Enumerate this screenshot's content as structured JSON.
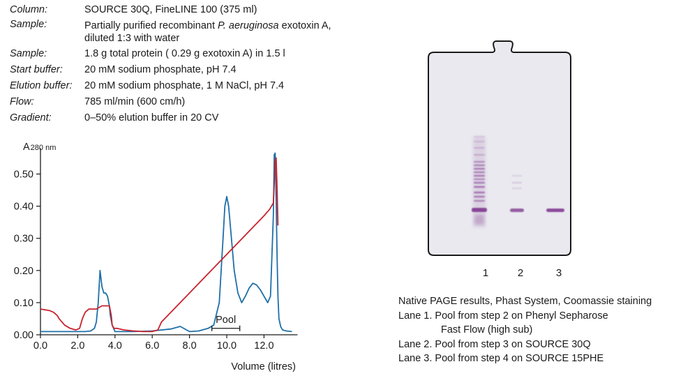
{
  "params": [
    {
      "label": "Column:",
      "lines": [
        "SOURCE 30Q, FineLINE 100 (375 ml)"
      ]
    },
    {
      "label": "Sample:",
      "lines": [
        "Partially purified recombinant P. aeruginosa exotoxin A,",
        "diluted 1:3 with water"
      ]
    },
    {
      "label": "Sample:",
      "lines": [
        "1.8 g total protein ( 0.29 g exotoxin A) in 1.5 l"
      ]
    },
    {
      "label": "Start buffer:",
      "lines": [
        "20 mM sodium phosphate, pH 7.4"
      ]
    },
    {
      "label": "Elution buffer:",
      "lines": [
        "20 mM sodium phosphate, 1 M NaCl, pH 7.4"
      ]
    },
    {
      "label": "Flow:",
      "lines": [
        "785 ml/min (600 cm/h)"
      ]
    },
    {
      "label": "Gradient:",
      "lines": [
        "0–50% elution buffer in 20 CV"
      ]
    }
  ],
  "chart_data": {
    "type": "line",
    "ylabel": "A",
    "ylabel_sub": "280 nm",
    "xlabel": "Volume (litres)",
    "xlim": [
      0,
      13.8
    ],
    "ylim": [
      0,
      0.58
    ],
    "xticks": [
      "0.0",
      "2.0",
      "4.0",
      "6.0",
      "8.0",
      "10.0",
      "12.0"
    ],
    "yticks": [
      "0.00",
      "0.10",
      "0.20",
      "0.30",
      "0.40",
      "0.50"
    ],
    "annotation": {
      "text": "Pool",
      "x_start": 9.2,
      "x_end": 10.7,
      "y": 0.02
    },
    "series": [
      {
        "color": "#1f6fa8",
        "x": [
          0,
          0.5,
          1.0,
          1.5,
          2.0,
          2.4,
          2.7,
          2.9,
          3.0,
          3.1,
          3.2,
          3.3,
          3.4,
          3.5,
          3.6,
          3.7,
          3.75,
          3.85,
          4.0,
          4.5,
          5.0,
          6.0,
          7.0,
          7.5,
          8.0,
          8.5,
          9.0,
          9.3,
          9.6,
          9.8,
          9.9,
          10.0,
          10.1,
          10.25,
          10.4,
          10.6,
          10.8,
          11.0,
          11.2,
          11.4,
          11.6,
          11.8,
          12.0,
          12.2,
          12.35,
          12.5,
          12.55,
          12.6,
          12.65,
          12.7,
          12.75,
          12.8,
          12.9,
          13.0,
          13.2,
          13.5
        ],
        "y": [
          0.01,
          0.01,
          0.01,
          0.01,
          0.01,
          0.01,
          0.012,
          0.02,
          0.04,
          0.1,
          0.2,
          0.15,
          0.13,
          0.13,
          0.12,
          0.09,
          0.06,
          0.03,
          0.01,
          0.01,
          0.01,
          0.012,
          0.018,
          0.026,
          0.01,
          0.012,
          0.02,
          0.03,
          0.1,
          0.3,
          0.4,
          0.43,
          0.4,
          0.3,
          0.2,
          0.13,
          0.1,
          0.12,
          0.145,
          0.16,
          0.155,
          0.14,
          0.12,
          0.1,
          0.12,
          0.37,
          0.56,
          0.565,
          0.42,
          0.25,
          0.12,
          0.05,
          0.025,
          0.015,
          0.012,
          0.01
        ]
      },
      {
        "color": "#c8232d",
        "x": [
          0,
          0.5,
          0.7,
          0.9,
          1.0,
          1.3,
          1.6,
          1.9,
          2.1,
          2.25,
          2.4,
          2.6,
          3.0,
          3.3,
          3.7,
          3.8,
          3.85,
          3.95,
          4.1,
          4.5,
          5.0,
          5.5,
          6.0,
          6.3,
          6.5,
          7.0,
          7.5,
          8.0,
          9.0,
          10.0,
          11.0,
          12.0,
          12.3,
          12.5,
          12.55,
          12.6,
          12.65,
          12.7,
          12.75
        ],
        "y": [
          0.08,
          0.075,
          0.07,
          0.06,
          0.05,
          0.03,
          0.02,
          0.015,
          0.02,
          0.05,
          0.07,
          0.08,
          0.08,
          0.09,
          0.09,
          0.06,
          0.03,
          0.02,
          0.02,
          0.015,
          0.012,
          0.01,
          0.01,
          0.015,
          0.04,
          0.07,
          0.1,
          0.13,
          0.19,
          0.25,
          0.31,
          0.37,
          0.39,
          0.41,
          0.47,
          0.54,
          0.55,
          0.46,
          0.34
        ]
      }
    ]
  },
  "gel": {
    "lane_labels": [
      "1",
      "2",
      "3"
    ],
    "band_color": "#7a2f8a"
  },
  "caption": {
    "line1": "Native PAGE results, Phast System, Coomassie staining",
    "lane1_a": "Lane 1.  Pool from step 2 on Phenyl Sepharose",
    "lane1_b": "Fast Flow (high sub)",
    "lane2": "Lane 2.  Pool from step 3 on SOURCE 30Q",
    "lane3": "Lane 3.  Pool from step 4 on SOURCE 15PHE"
  }
}
